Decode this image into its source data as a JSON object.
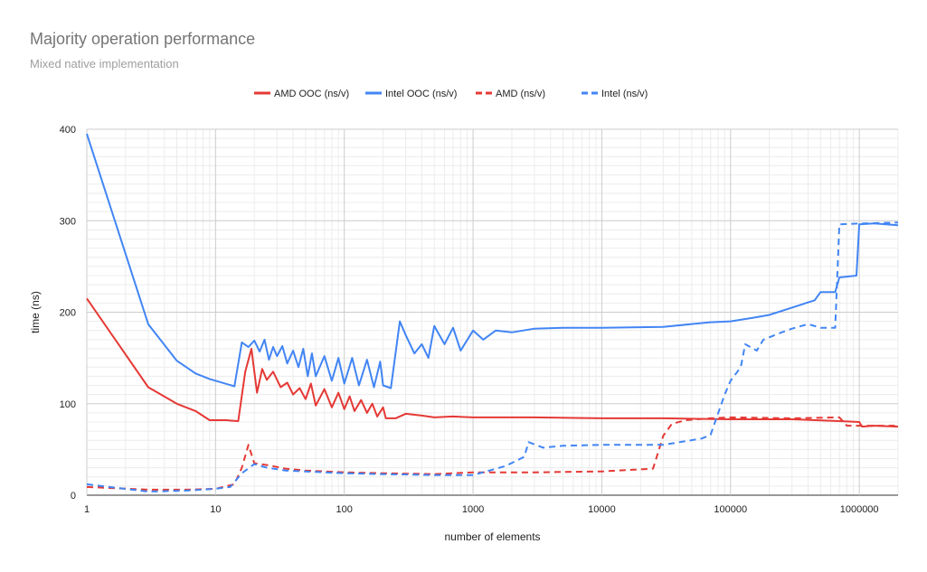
{
  "chart_data": {
    "type": "line",
    "title": "Majority operation performance",
    "subtitle": "Mixed native implementation",
    "xlabel": "number of elements",
    "ylabel": "time (ns)",
    "x_scale": "log",
    "xlim": [
      1,
      2000000
    ],
    "ylim": [
      0,
      400
    ],
    "x_ticks": [
      1,
      10,
      100,
      1000,
      10000,
      100000,
      1000000
    ],
    "x_tick_labels": [
      "1",
      "10",
      "100",
      "1000",
      "10000",
      "100000",
      "1000000"
    ],
    "y_ticks": [
      0,
      100,
      200,
      300,
      400
    ],
    "y_tick_labels": [
      "0",
      "100",
      "200",
      "300",
      "400"
    ],
    "grid": true,
    "legend_position": "top",
    "series": [
      {
        "name": "AMD OOC (ns/v)",
        "color": "#e53935",
        "dash": false,
        "points": [
          [
            1,
            215
          ],
          [
            3,
            118
          ],
          [
            5,
            100
          ],
          [
            7,
            92
          ],
          [
            9,
            82
          ],
          [
            12,
            82
          ],
          [
            15,
            81
          ],
          [
            17,
            135
          ],
          [
            19,
            160
          ],
          [
            21,
            112
          ],
          [
            23,
            138
          ],
          [
            25,
            126
          ],
          [
            28,
            135
          ],
          [
            32,
            118
          ],
          [
            36,
            123
          ],
          [
            40,
            110
          ],
          [
            45,
            117
          ],
          [
            50,
            105
          ],
          [
            55,
            122
          ],
          [
            60,
            98
          ],
          [
            70,
            116
          ],
          [
            80,
            96
          ],
          [
            90,
            112
          ],
          [
            100,
            94
          ],
          [
            110,
            108
          ],
          [
            120,
            92
          ],
          [
            135,
            104
          ],
          [
            150,
            90
          ],
          [
            165,
            100
          ],
          [
            180,
            86
          ],
          [
            200,
            96
          ],
          [
            210,
            84
          ],
          [
            250,
            84
          ],
          [
            300,
            89
          ],
          [
            400,
            87
          ],
          [
            500,
            85
          ],
          [
            700,
            86
          ],
          [
            1000,
            85
          ],
          [
            3000,
            85
          ],
          [
            10000,
            84
          ],
          [
            30000,
            84
          ],
          [
            100000,
            83
          ],
          [
            300000,
            83
          ],
          [
            700000,
            81
          ],
          [
            1000000,
            80
          ],
          [
            1050000,
            75
          ],
          [
            1300000,
            76
          ],
          [
            2000000,
            75
          ]
        ]
      },
      {
        "name": "Intel OOC (ns/v)",
        "color": "#4285f4",
        "dash": false,
        "points": [
          [
            1,
            395
          ],
          [
            3,
            187
          ],
          [
            5,
            147
          ],
          [
            7,
            133
          ],
          [
            9,
            127
          ],
          [
            14,
            119
          ],
          [
            16,
            167
          ],
          [
            18,
            162
          ],
          [
            20,
            169
          ],
          [
            22,
            157
          ],
          [
            24,
            170
          ],
          [
            26,
            148
          ],
          [
            28,
            162
          ],
          [
            30,
            152
          ],
          [
            33,
            163
          ],
          [
            36,
            144
          ],
          [
            40,
            158
          ],
          [
            44,
            140
          ],
          [
            48,
            160
          ],
          [
            52,
            130
          ],
          [
            56,
            155
          ],
          [
            60,
            130
          ],
          [
            70,
            152
          ],
          [
            80,
            125
          ],
          [
            90,
            150
          ],
          [
            100,
            122
          ],
          [
            115,
            150
          ],
          [
            130,
            120
          ],
          [
            150,
            148
          ],
          [
            170,
            118
          ],
          [
            190,
            146
          ],
          [
            200,
            120
          ],
          [
            230,
            117
          ],
          [
            270,
            190
          ],
          [
            300,
            175
          ],
          [
            350,
            155
          ],
          [
            400,
            165
          ],
          [
            450,
            150
          ],
          [
            500,
            185
          ],
          [
            600,
            165
          ],
          [
            700,
            183
          ],
          [
            800,
            158
          ],
          [
            1000,
            180
          ],
          [
            1200,
            170
          ],
          [
            1500,
            180
          ],
          [
            2000,
            178
          ],
          [
            3000,
            182
          ],
          [
            5000,
            183
          ],
          [
            10000,
            183
          ],
          [
            30000,
            184
          ],
          [
            70000,
            189
          ],
          [
            100000,
            190
          ],
          [
            150000,
            194
          ],
          [
            200000,
            197
          ],
          [
            300000,
            205
          ],
          [
            450000,
            213
          ],
          [
            500000,
            222
          ],
          [
            650000,
            222
          ],
          [
            700000,
            238
          ],
          [
            950000,
            240
          ],
          [
            1000000,
            296
          ],
          [
            1300000,
            297
          ],
          [
            2000000,
            295
          ]
        ]
      },
      {
        "name": "AMD (ns/v)",
        "color": "#e53935",
        "dash": true,
        "points": [
          [
            1,
            9
          ],
          [
            3,
            6
          ],
          [
            6,
            6
          ],
          [
            10,
            7
          ],
          [
            14,
            12
          ],
          [
            16,
            30
          ],
          [
            18,
            55
          ],
          [
            20,
            35
          ],
          [
            25,
            33
          ],
          [
            35,
            29
          ],
          [
            50,
            27
          ],
          [
            100,
            25
          ],
          [
            200,
            24
          ],
          [
            500,
            23
          ],
          [
            1000,
            25
          ],
          [
            3000,
            25
          ],
          [
            10000,
            26
          ],
          [
            25000,
            29
          ],
          [
            30000,
            65
          ],
          [
            35000,
            78
          ],
          [
            45000,
            82
          ],
          [
            70000,
            84
          ],
          [
            100000,
            85
          ],
          [
            300000,
            84
          ],
          [
            700000,
            85
          ],
          [
            800000,
            76
          ],
          [
            2000000,
            76
          ]
        ]
      },
      {
        "name": "Intel (ns/v)",
        "color": "#4285f4",
        "dash": true,
        "points": [
          [
            1,
            12
          ],
          [
            3,
            4
          ],
          [
            6,
            5
          ],
          [
            10,
            7
          ],
          [
            13,
            9
          ],
          [
            16,
            24
          ],
          [
            20,
            34
          ],
          [
            25,
            30
          ],
          [
            35,
            27
          ],
          [
            50,
            26
          ],
          [
            100,
            24
          ],
          [
            200,
            23
          ],
          [
            500,
            22
          ],
          [
            1000,
            22
          ],
          [
            1800,
            32
          ],
          [
            2500,
            42
          ],
          [
            2700,
            58
          ],
          [
            3500,
            52
          ],
          [
            5000,
            54
          ],
          [
            10000,
            55
          ],
          [
            30000,
            55
          ],
          [
            60000,
            62
          ],
          [
            70000,
            66
          ],
          [
            90000,
            110
          ],
          [
            100000,
            125
          ],
          [
            120000,
            140
          ],
          [
            130000,
            165
          ],
          [
            160000,
            158
          ],
          [
            180000,
            170
          ],
          [
            250000,
            178
          ],
          [
            300000,
            182
          ],
          [
            400000,
            187
          ],
          [
            500000,
            183
          ],
          [
            650000,
            183
          ],
          [
            700000,
            296
          ],
          [
            1000000,
            297
          ],
          [
            2000000,
            298
          ]
        ]
      }
    ]
  }
}
